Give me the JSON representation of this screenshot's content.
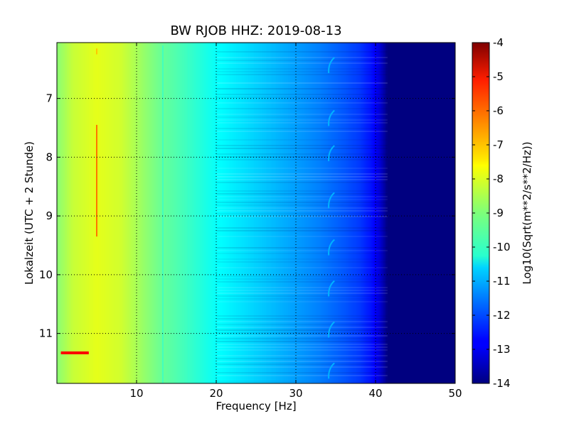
{
  "chart_data": {
    "type": "heatmap",
    "title": "BW RJOB HHZ: 2019-08-13",
    "xlabel": "Frequency [Hz]",
    "ylabel": "Lokalzeit (UTC + 2 Stunde)",
    "xlim": [
      0,
      50
    ],
    "ylim": [
      11.85,
      6.05
    ],
    "x_ticks": [
      "10",
      "20",
      "30",
      "40",
      "50"
    ],
    "x_tick_values": [
      10,
      20,
      30,
      40,
      50
    ],
    "y_ticks": [
      "7",
      "8",
      "9",
      "10",
      "11"
    ],
    "y_tick_values": [
      7,
      8,
      9,
      10,
      11
    ],
    "grid": true,
    "colormap": "jet",
    "colorbar": {
      "label": "Log10(Sqrt(m**2/s**2/Hz))",
      "range": [
        -14,
        -4
      ],
      "ticks": [
        "-4",
        "-5",
        "-6",
        "-7",
        "-8",
        "-9",
        "-10",
        "-11",
        "-12",
        "-13",
        "-14"
      ],
      "tick_values": [
        -4,
        -5,
        -6,
        -7,
        -8,
        -9,
        -10,
        -11,
        -12,
        -13,
        -14
      ]
    },
    "spectrum_profile": {
      "frequency_hz": [
        0,
        2,
        5,
        8,
        10,
        13,
        16,
        18,
        20,
        23,
        26,
        30,
        33,
        36,
        38,
        39.5,
        40.5,
        41.5,
        50
      ],
      "value": [
        -8.9,
        -8.3,
        -8.0,
        -8.2,
        -8.6,
        -9.2,
        -9.6,
        -9.9,
        -10.2,
        -10.5,
        -10.8,
        -11.2,
        -11.5,
        -11.9,
        -12.2,
        -12.6,
        -13.1,
        -14.0,
        -14.0
      ]
    },
    "features": [
      {
        "kind": "vertical-line",
        "frequency_hz": 5,
        "time_start": 6.15,
        "time_end": 6.25,
        "value": -7.2
      },
      {
        "kind": "vertical-line",
        "frequency_hz": 5,
        "time_start": 7.45,
        "time_end": 9.35,
        "value": -6.4
      },
      {
        "kind": "horizontal-line",
        "time": 11.33,
        "freq_start": 0.5,
        "freq_end": 4,
        "value": -5.2
      },
      {
        "kind": "vertical-line",
        "frequency_hz": 13.3,
        "time_start": 6.1,
        "time_end": 11.85,
        "value": -9.6
      },
      {
        "kind": "vertical-line",
        "frequency_hz": 16.5,
        "time_start": 6.1,
        "time_end": 11.85,
        "value": -9.7
      }
    ],
    "arcs": {
      "frequency_hz": 34.3,
      "times": [
        6.4,
        7.3,
        7.9,
        8.7,
        9.5,
        10.2,
        10.9,
        11.6
      ],
      "value": -11.0
    }
  }
}
